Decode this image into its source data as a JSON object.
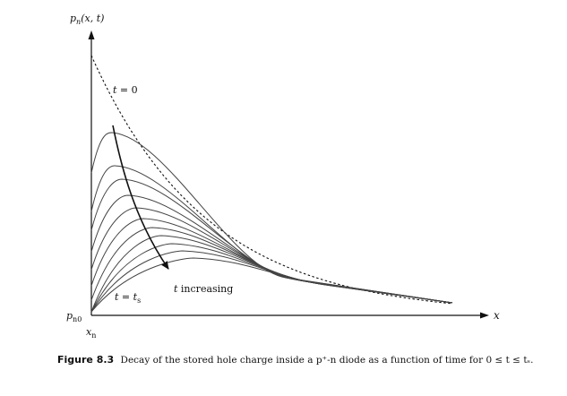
{
  "figure": {
    "y_axis_label": "p_n(x, t)",
    "x_axis_label": "x",
    "origin_value_label": "p_n0",
    "origin_position_label": "x_n",
    "curve_t0_label": "t = 0",
    "curve_ts_label": "t = t_s",
    "arrow_label": "t increasing",
    "colors": {
      "ink": "#111111",
      "curve": "#444444"
    }
  },
  "caption": {
    "label": "Figure 8.3",
    "text": "Decay of the stored hole charge inside a p⁺-n diode as a function of time for 0 ≤ t ≤ tₛ."
  }
}
